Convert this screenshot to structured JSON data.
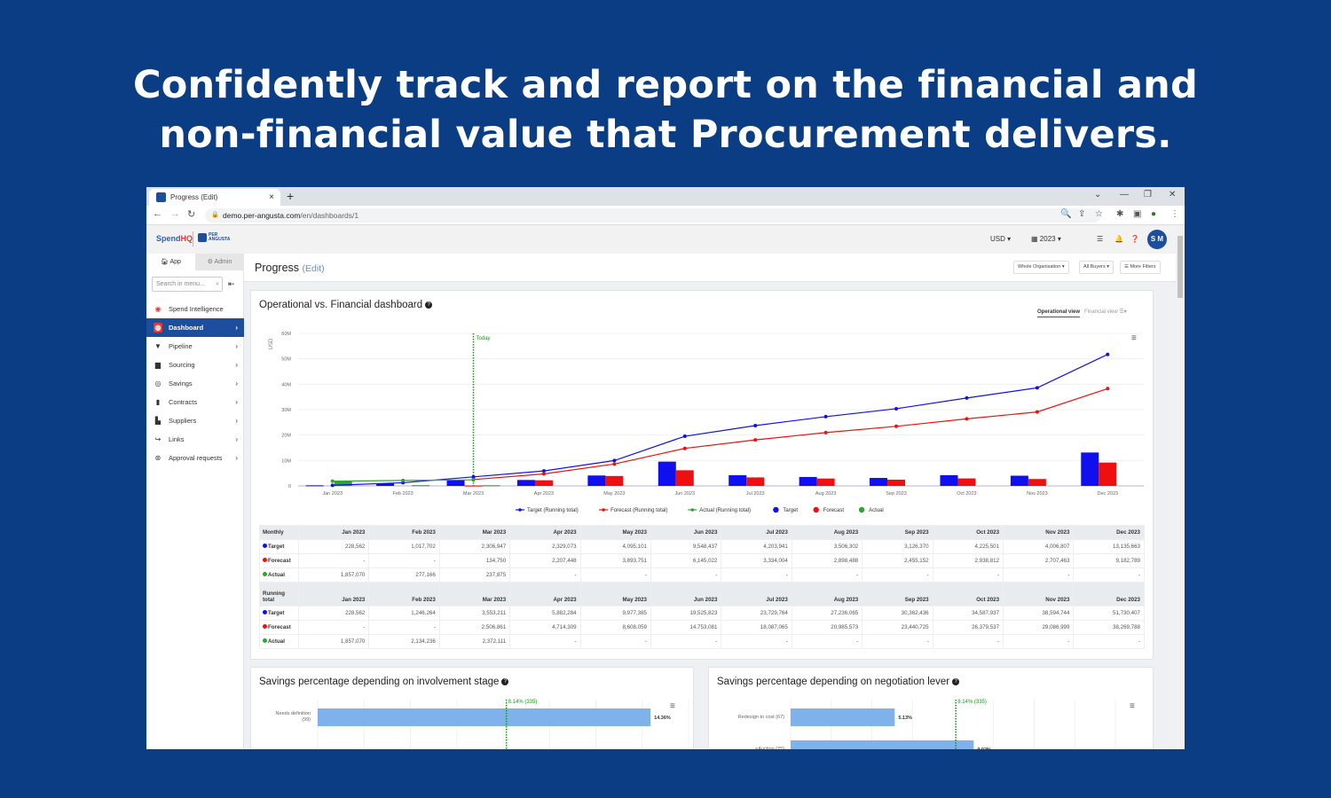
{
  "headline": {
    "line1": "Confidently track and report on the financial and",
    "line2": "non-financial value that Procurement delivers."
  },
  "browser": {
    "tab_title": "Progress (Edit)",
    "url_host": "demo.per-angusta.com",
    "url_path": "/en/dashboards/1",
    "new_tab": "+",
    "close": "×"
  },
  "header": {
    "logo_spendhq": "SpendHQ",
    "logo_per_angusta": "PER ANGUSTA",
    "currency": "USD",
    "year": "2023",
    "avatar": "S M"
  },
  "sidebar": {
    "tab_app": "App",
    "tab_admin": "Admin",
    "search_placeholder": "Search in menu...",
    "items": [
      {
        "label": "Spend Intelligence",
        "icon": "spend-intelligence-icon"
      },
      {
        "label": "Dashboard",
        "icon": "dashboard-icon",
        "active": true
      },
      {
        "label": "Pipeline",
        "icon": "funnel-icon"
      },
      {
        "label": "Sourcing",
        "icon": "folder-icon"
      },
      {
        "label": "Savings",
        "icon": "coins-icon"
      },
      {
        "label": "Contracts",
        "icon": "document-icon"
      },
      {
        "label": "Suppliers",
        "icon": "factory-icon"
      },
      {
        "label": "Links",
        "icon": "share-icon"
      },
      {
        "label": "Approval requests",
        "icon": "approval-icon"
      }
    ]
  },
  "page": {
    "title": "Progress",
    "edit": "(Edit)",
    "filters": [
      "Whole Organisation ▾",
      "All Buyers ▾",
      "☰ More Filters"
    ]
  },
  "colors": {
    "target": "#1010ee",
    "forecast": "#ee1010",
    "actual": "#2ea52e",
    "today": "#1a9a1a",
    "brand": "#1d4e9e",
    "background": "#0a3d84"
  },
  "dashboard": {
    "title": "Operational vs. Financial dashboard",
    "view_operational": "Operational view",
    "view_financial": "Financial view"
  },
  "chart_data": [
    {
      "type": "bar+line",
      "ylabel": "USD",
      "ylim": [
        0,
        60000000
      ],
      "yticks": [
        "0",
        "10M",
        "20M",
        "30M",
        "40M",
        "50M",
        "60M"
      ],
      "legend_position": "bottom",
      "grid": true,
      "categories": [
        "Jan 2023",
        "Feb 2023",
        "Mar 2023",
        "Apr 2023",
        "May 2023",
        "Jun 2023",
        "Jul 2023",
        "Aug 2023",
        "Sep 2023",
        "Oct 2023",
        "Nov 2023",
        "Dec 2023"
      ],
      "annotation": {
        "label": "Today",
        "x": "Mar 2023"
      },
      "series": [
        {
          "name": "Target (Running total)",
          "kind": "line",
          "color": "#1010ee",
          "values": [
            228562,
            1246264,
            3553211,
            5882284,
            9977385,
            19525823,
            23729764,
            27236065,
            30362436,
            34587937,
            38594744,
            51730407
          ]
        },
        {
          "name": "Forecast (Running total)",
          "kind": "line",
          "color": "#ee1010",
          "values": [
            null,
            null,
            2506861,
            4714309,
            8608059,
            14753081,
            18087065,
            20985573,
            23440725,
            26379537,
            29086999,
            38269788
          ]
        },
        {
          "name": "Actual (Running total)",
          "kind": "line",
          "color": "#2ea52e",
          "values": [
            1857070,
            2134236,
            2372111,
            null,
            null,
            null,
            null,
            null,
            null,
            null,
            null,
            null
          ]
        },
        {
          "name": "Target",
          "kind": "bar",
          "color": "#1010ee",
          "values": [
            228562,
            1017702,
            2306947,
            2329073,
            4095101,
            9548437,
            4203941,
            3506302,
            3126370,
            4225501,
            4006807,
            13135663
          ]
        },
        {
          "name": "Forecast",
          "kind": "bar",
          "color": "#ee1010",
          "values": [
            null,
            null,
            134750,
            2207448,
            3893751,
            6145022,
            3334004,
            2898488,
            2455152,
            2938812,
            2707463,
            9182789
          ]
        },
        {
          "name": "Actual",
          "kind": "bar",
          "color": "#2ea52e",
          "values": [
            1857070,
            277166,
            237875,
            null,
            null,
            null,
            null,
            null,
            null,
            null,
            null,
            null
          ]
        }
      ]
    },
    {
      "type": "bar",
      "orientation": "horizontal",
      "title": "Savings percentage depending on involvement stage",
      "categories": [
        "Needs definition (99)"
      ],
      "values": [
        14.36
      ],
      "data_labels": [
        "14.36%"
      ],
      "reference_line": {
        "label": "8.14% (335)",
        "value": 8.14
      }
    },
    {
      "type": "bar",
      "orientation": "horizontal",
      "title": "Savings percentage depending on negotiation lever",
      "categories": [
        "Redesign to cost (67)",
        "eAuction (75)"
      ],
      "values": [
        5.13,
        9.02
      ],
      "data_labels": [
        "5.13%",
        "9.02%"
      ],
      "reference_line": {
        "label": "8.14% (335)",
        "value": 8.14
      }
    }
  ],
  "table": {
    "monthly_label": "Monthly",
    "running_label_1": "Running",
    "running_label_2": "total",
    "months": [
      "Jan 2023",
      "Feb 2023",
      "Mar 2023",
      "Apr 2023",
      "May 2023",
      "Jun 2023",
      "Jul 2023",
      "Aug 2023",
      "Sep 2023",
      "Oct 2023",
      "Nov 2023",
      "Dec 2023"
    ],
    "monthly": [
      {
        "label": "Target",
        "color": "#1010ee",
        "cells": [
          "228,562",
          "1,017,702",
          "2,306,947",
          "2,329,073",
          "4,095,101",
          "9,548,437",
          "4,203,941",
          "3,506,302",
          "3,126,370",
          "4,225,501",
          "4,006,807",
          "13,135,663"
        ]
      },
      {
        "label": "Forecast",
        "color": "#ee1010",
        "cells": [
          "-",
          "-",
          "134,750",
          "2,207,448",
          "3,893,751",
          "6,145,022",
          "3,334,004",
          "2,898,488",
          "2,455,152",
          "2,938,812",
          "2,707,463",
          "9,182,789"
        ]
      },
      {
        "label": "Actual",
        "color": "#2ea52e",
        "cells": [
          "1,857,070",
          "277,166",
          "237,875",
          "-",
          "-",
          "-",
          "-",
          "-",
          "-",
          "-",
          "-",
          "-"
        ]
      }
    ],
    "running": [
      {
        "label": "Target",
        "color": "#1010ee",
        "cells": [
          "228,562",
          "1,246,264",
          "3,553,211",
          "5,882,284",
          "9,977,385",
          "19,525,823",
          "23,729,764",
          "27,236,065",
          "30,362,436",
          "34,587,937",
          "38,594,744",
          "51,730,407"
        ]
      },
      {
        "label": "Forecast",
        "color": "#ee1010",
        "cells": [
          "-",
          "-",
          "2,506,861",
          "4,714,309",
          "8,608,059",
          "14,753,081",
          "18,087,065",
          "20,985,573",
          "23,440,725",
          "26,379,537",
          "29,086,999",
          "38,269,788"
        ]
      },
      {
        "label": "Actual",
        "color": "#2ea52e",
        "cells": [
          "1,857,070",
          "2,134,236",
          "2,372,111",
          "-",
          "-",
          "-",
          "-",
          "-",
          "-",
          "-",
          "-",
          "-"
        ]
      }
    ]
  }
}
